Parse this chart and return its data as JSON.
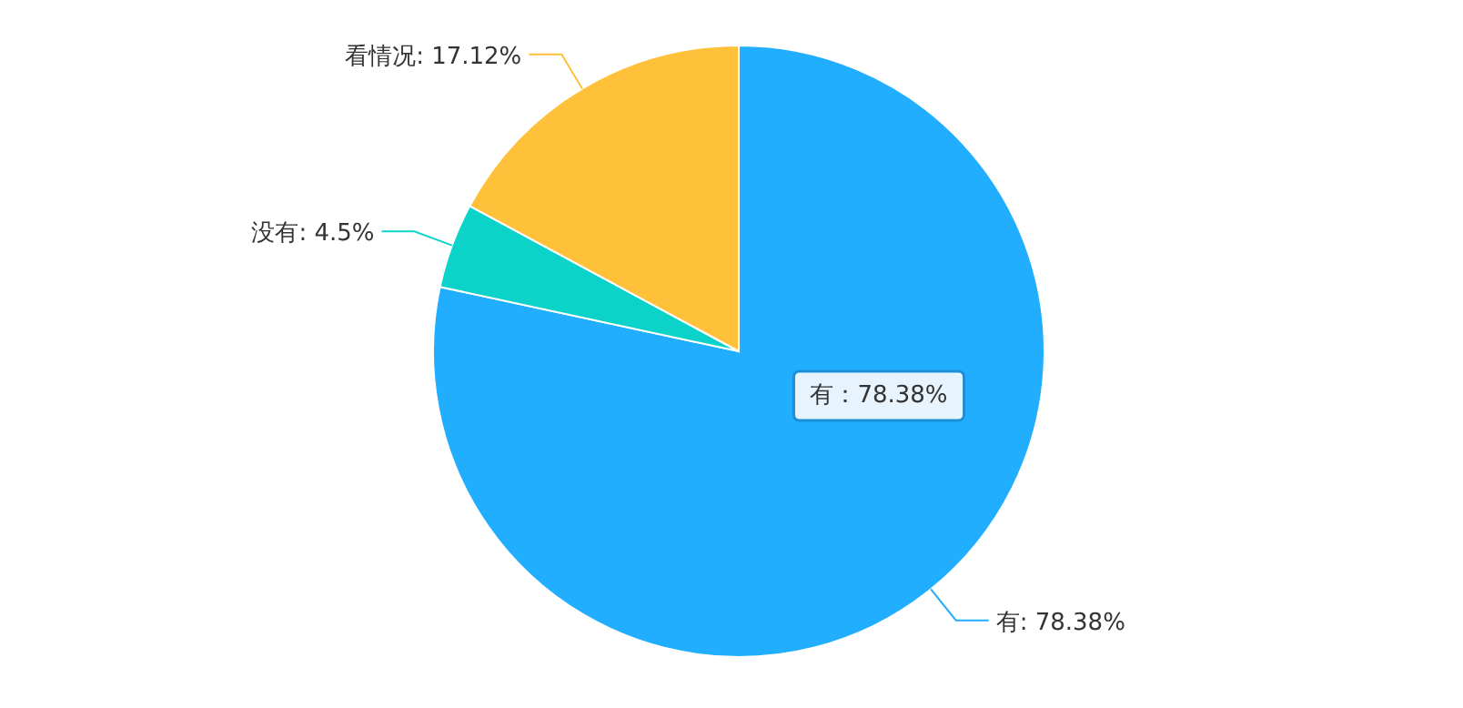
{
  "chart_data": {
    "type": "pie",
    "categories": [
      "有",
      "没有",
      "看情况"
    ],
    "values": [
      78.38,
      4.5,
      17.12
    ],
    "colors": [
      "#22aeff",
      "#0cd3c9",
      "#ffc13a"
    ],
    "value_labels": [
      ": 78.38%",
      ": 4.5%",
      ": 17.12%"
    ],
    "annotations": [
      "有：78.38%"
    ]
  }
}
